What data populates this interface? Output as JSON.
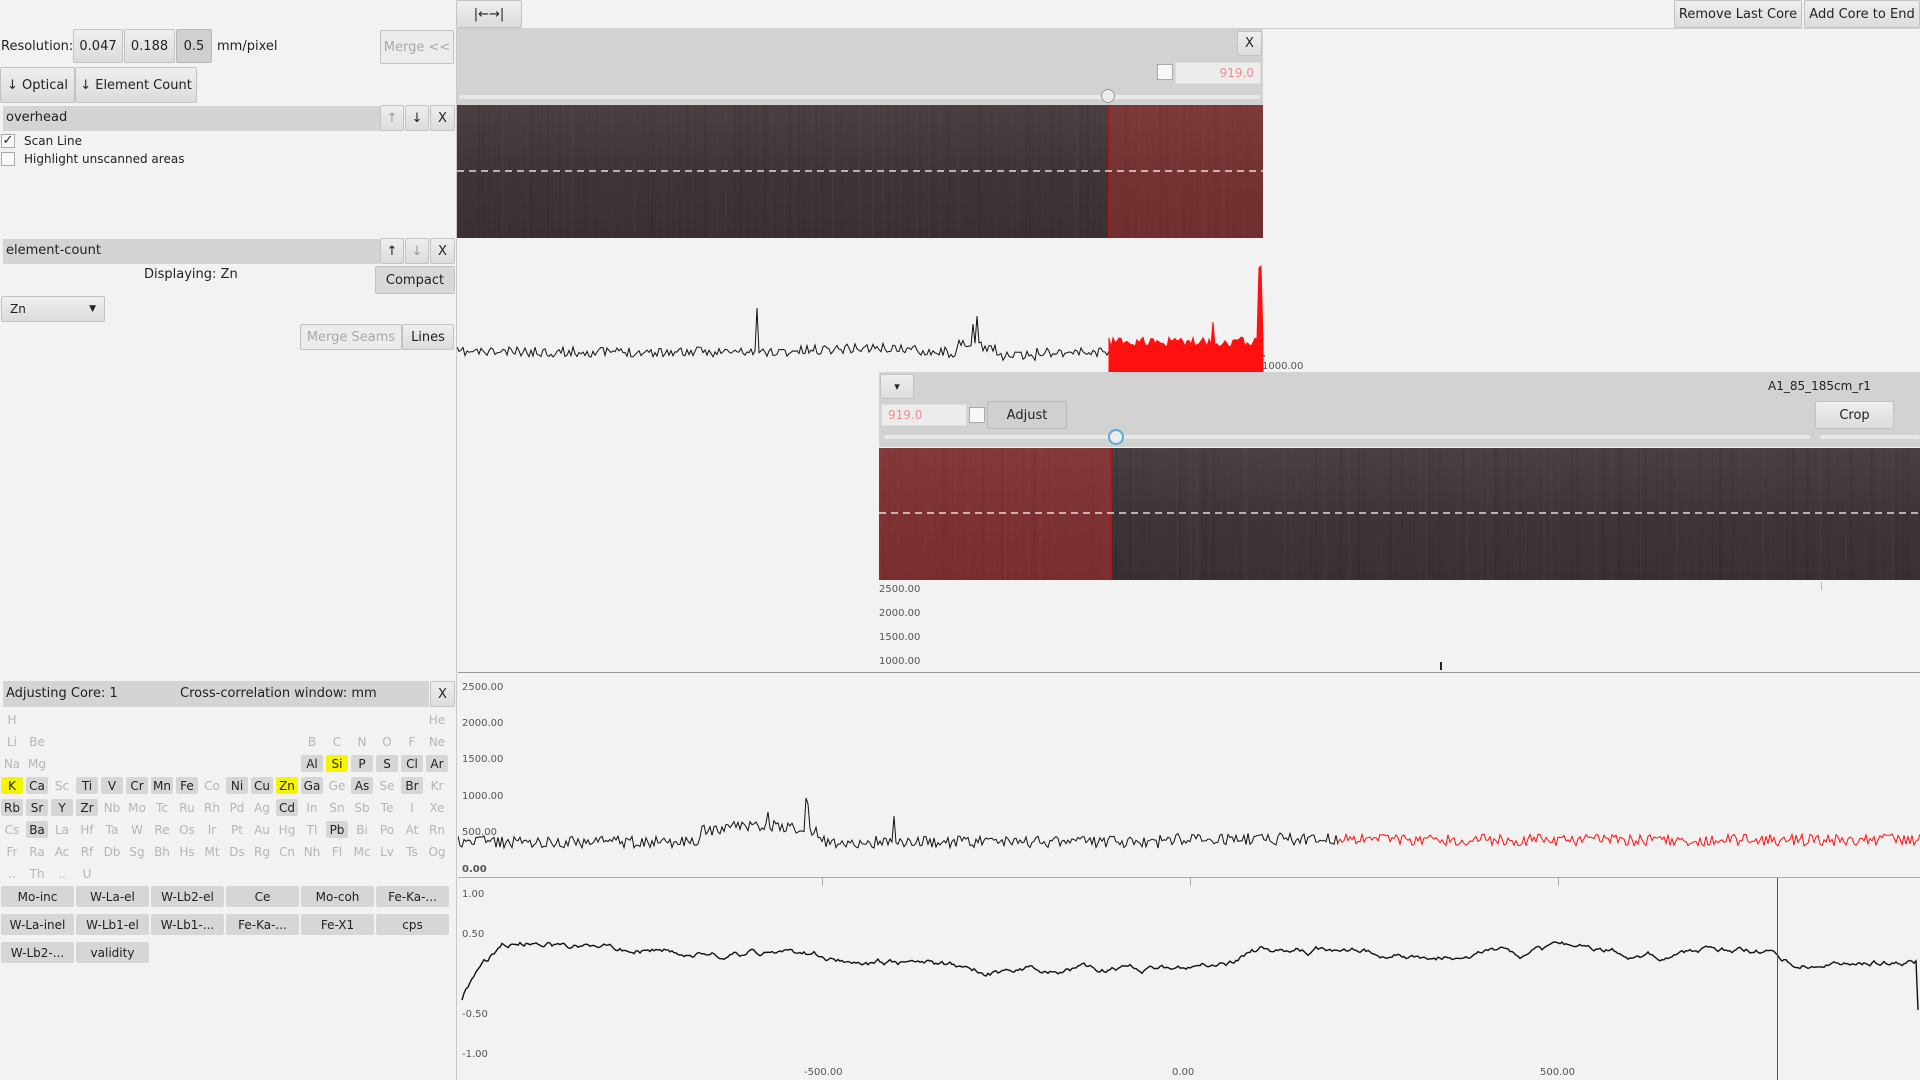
{
  "toolbar": {
    "resolution_label": "Resolution:",
    "res_options": [
      "0.047",
      "0.188",
      "0.5"
    ],
    "res_selected": "0.5",
    "unit_label": "mm/pixel",
    "merge_button": "Merge <<",
    "optical_button": "↓ Optical",
    "element_count_button": "↓ Element Count",
    "fit_button": "|←→|",
    "remove_last_core": "Remove Last Core",
    "add_core_to_end": "Add Core to End"
  },
  "overhead_panel": {
    "title": "overhead",
    "up": "↑",
    "down": "↓",
    "close": "X",
    "scan_line_label": "Scan Line",
    "scan_line_checked": true,
    "highlight_label": "Highlight unscanned areas",
    "highlight_checked": false
  },
  "element_panel": {
    "title": "element-count",
    "up": "↑",
    "down": "↓",
    "close": "X",
    "displaying": "Displaying: Zn",
    "compact_button": "Compact",
    "element_select": "Zn",
    "merge_seams_button": "Merge Seams",
    "lines_button": "Lines"
  },
  "adjust_panel": {
    "adjusting_label": "Adjusting Core: 1",
    "window_label": "Cross-correlation window: mm",
    "close": "X"
  },
  "periodic_table": [
    {
      "s": "H",
      "r": 0,
      "c": 0,
      "st": "off"
    },
    {
      "s": "He",
      "r": 0,
      "c": 17,
      "st": "off"
    },
    {
      "s": "Li",
      "r": 1,
      "c": 0,
      "st": "off"
    },
    {
      "s": "Be",
      "r": 1,
      "c": 1,
      "st": "off"
    },
    {
      "s": "B",
      "r": 1,
      "c": 12,
      "st": "off"
    },
    {
      "s": "C",
      "r": 1,
      "c": 13,
      "st": "off"
    },
    {
      "s": "N",
      "r": 1,
      "c": 14,
      "st": "off"
    },
    {
      "s": "O",
      "r": 1,
      "c": 15,
      "st": "off"
    },
    {
      "s": "F",
      "r": 1,
      "c": 16,
      "st": "off"
    },
    {
      "s": "Ne",
      "r": 1,
      "c": 17,
      "st": "off"
    },
    {
      "s": "Na",
      "r": 2,
      "c": 0,
      "st": "off"
    },
    {
      "s": "Mg",
      "r": 2,
      "c": 1,
      "st": "off"
    },
    {
      "s": "Al",
      "r": 2,
      "c": 12,
      "st": "on"
    },
    {
      "s": "Si",
      "r": 2,
      "c": 13,
      "st": "hi"
    },
    {
      "s": "P",
      "r": 2,
      "c": 14,
      "st": "on"
    },
    {
      "s": "S",
      "r": 2,
      "c": 15,
      "st": "on"
    },
    {
      "s": "Cl",
      "r": 2,
      "c": 16,
      "st": "on"
    },
    {
      "s": "Ar",
      "r": 2,
      "c": 17,
      "st": "on"
    },
    {
      "s": "K",
      "r": 3,
      "c": 0,
      "st": "hi"
    },
    {
      "s": "Ca",
      "r": 3,
      "c": 1,
      "st": "on"
    },
    {
      "s": "Sc",
      "r": 3,
      "c": 2,
      "st": "off"
    },
    {
      "s": "Ti",
      "r": 3,
      "c": 3,
      "st": "on"
    },
    {
      "s": "V",
      "r": 3,
      "c": 4,
      "st": "on"
    },
    {
      "s": "Cr",
      "r": 3,
      "c": 5,
      "st": "on"
    },
    {
      "s": "Mn",
      "r": 3,
      "c": 6,
      "st": "on"
    },
    {
      "s": "Fe",
      "r": 3,
      "c": 7,
      "st": "on"
    },
    {
      "s": "Co",
      "r": 3,
      "c": 8,
      "st": "off"
    },
    {
      "s": "Ni",
      "r": 3,
      "c": 9,
      "st": "on"
    },
    {
      "s": "Cu",
      "r": 3,
      "c": 10,
      "st": "on"
    },
    {
      "s": "Zn",
      "r": 3,
      "c": 11,
      "st": "hi"
    },
    {
      "s": "Ga",
      "r": 3,
      "c": 12,
      "st": "on"
    },
    {
      "s": "Ge",
      "r": 3,
      "c": 13,
      "st": "off"
    },
    {
      "s": "As",
      "r": 3,
      "c": 14,
      "st": "on"
    },
    {
      "s": "Se",
      "r": 3,
      "c": 15,
      "st": "off"
    },
    {
      "s": "Br",
      "r": 3,
      "c": 16,
      "st": "on"
    },
    {
      "s": "Kr",
      "r": 3,
      "c": 17,
      "st": "off"
    },
    {
      "s": "Rb",
      "r": 4,
      "c": 0,
      "st": "on"
    },
    {
      "s": "Sr",
      "r": 4,
      "c": 1,
      "st": "on"
    },
    {
      "s": "Y",
      "r": 4,
      "c": 2,
      "st": "on"
    },
    {
      "s": "Zr",
      "r": 4,
      "c": 3,
      "st": "on"
    },
    {
      "s": "Nb",
      "r": 4,
      "c": 4,
      "st": "off"
    },
    {
      "s": "Mo",
      "r": 4,
      "c": 5,
      "st": "off"
    },
    {
      "s": "Tc",
      "r": 4,
      "c": 6,
      "st": "off"
    },
    {
      "s": "Ru",
      "r": 4,
      "c": 7,
      "st": "off"
    },
    {
      "s": "Rh",
      "r": 4,
      "c": 8,
      "st": "off"
    },
    {
      "s": "Pd",
      "r": 4,
      "c": 9,
      "st": "off"
    },
    {
      "s": "Ag",
      "r": 4,
      "c": 10,
      "st": "off"
    },
    {
      "s": "Cd",
      "r": 4,
      "c": 11,
      "st": "on"
    },
    {
      "s": "In",
      "r": 4,
      "c": 12,
      "st": "off"
    },
    {
      "s": "Sn",
      "r": 4,
      "c": 13,
      "st": "off"
    },
    {
      "s": "Sb",
      "r": 4,
      "c": 14,
      "st": "off"
    },
    {
      "s": "Te",
      "r": 4,
      "c": 15,
      "st": "off"
    },
    {
      "s": "I",
      "r": 4,
      "c": 16,
      "st": "off"
    },
    {
      "s": "Xe",
      "r": 4,
      "c": 17,
      "st": "off"
    },
    {
      "s": "Cs",
      "r": 5,
      "c": 0,
      "st": "off"
    },
    {
      "s": "Ba",
      "r": 5,
      "c": 1,
      "st": "on"
    },
    {
      "s": "La",
      "r": 5,
      "c": 2,
      "st": "off"
    },
    {
      "s": "Hf",
      "r": 5,
      "c": 3,
      "st": "off"
    },
    {
      "s": "Ta",
      "r": 5,
      "c": 4,
      "st": "off"
    },
    {
      "s": "W",
      "r": 5,
      "c": 5,
      "st": "off"
    },
    {
      "s": "Re",
      "r": 5,
      "c": 6,
      "st": "off"
    },
    {
      "s": "Os",
      "r": 5,
      "c": 7,
      "st": "off"
    },
    {
      "s": "Ir",
      "r": 5,
      "c": 8,
      "st": "off"
    },
    {
      "s": "Pt",
      "r": 5,
      "c": 9,
      "st": "off"
    },
    {
      "s": "Au",
      "r": 5,
      "c": 10,
      "st": "off"
    },
    {
      "s": "Hg",
      "r": 5,
      "c": 11,
      "st": "off"
    },
    {
      "s": "Tl",
      "r": 5,
      "c": 12,
      "st": "off"
    },
    {
      "s": "Pb",
      "r": 5,
      "c": 13,
      "st": "on"
    },
    {
      "s": "Bi",
      "r": 5,
      "c": 14,
      "st": "off"
    },
    {
      "s": "Po",
      "r": 5,
      "c": 15,
      "st": "off"
    },
    {
      "s": "At",
      "r": 5,
      "c": 16,
      "st": "off"
    },
    {
      "s": "Rn",
      "r": 5,
      "c": 17,
      "st": "off"
    },
    {
      "s": "Fr",
      "r": 6,
      "c": 0,
      "st": "off"
    },
    {
      "s": "Ra",
      "r": 6,
      "c": 1,
      "st": "off"
    },
    {
      "s": "Ac",
      "r": 6,
      "c": 2,
      "st": "off"
    },
    {
      "s": "Rf",
      "r": 6,
      "c": 3,
      "st": "off"
    },
    {
      "s": "Db",
      "r": 6,
      "c": 4,
      "st": "off"
    },
    {
      "s": "Sg",
      "r": 6,
      "c": 5,
      "st": "off"
    },
    {
      "s": "Bh",
      "r": 6,
      "c": 6,
      "st": "off"
    },
    {
      "s": "Hs",
      "r": 6,
      "c": 7,
      "st": "off"
    },
    {
      "s": "Mt",
      "r": 6,
      "c": 8,
      "st": "off"
    },
    {
      "s": "Ds",
      "r": 6,
      "c": 9,
      "st": "off"
    },
    {
      "s": "Rg",
      "r": 6,
      "c": 10,
      "st": "off"
    },
    {
      "s": "Cn",
      "r": 6,
      "c": 11,
      "st": "off"
    },
    {
      "s": "Nh",
      "r": 6,
      "c": 12,
      "st": "off"
    },
    {
      "s": "Fl",
      "r": 6,
      "c": 13,
      "st": "off"
    },
    {
      "s": "Mc",
      "r": 6,
      "c": 14,
      "st": "off"
    },
    {
      "s": "Lv",
      "r": 6,
      "c": 15,
      "st": "off"
    },
    {
      "s": "Ts",
      "r": 6,
      "c": 16,
      "st": "off"
    },
    {
      "s": "Og",
      "r": 6,
      "c": 17,
      "st": "off"
    },
    {
      "s": "..",
      "r": 7,
      "c": 0,
      "st": "off"
    },
    {
      "s": "Th",
      "r": 7,
      "c": 1,
      "st": "off"
    },
    {
      "s": "..",
      "r": 7,
      "c": 2,
      "st": "off"
    },
    {
      "s": "U",
      "r": 7,
      "c": 3,
      "st": "off"
    }
  ],
  "extra_channels": [
    "Mo-inc",
    "W-La-el",
    "W-Lb2-el",
    "Ce",
    "Mo-coh",
    "Fe-Ka-...",
    "W-La-inel",
    "W-Lb1-el",
    "W-Lb1-...",
    "Fe-Ka-...",
    "Fe-X1",
    "cps",
    "W-Lb2-...",
    "validity"
  ],
  "core1": {
    "close": "X",
    "depth_value": "919.0",
    "slider_fraction": 0.81,
    "axis_end_label": "1000.00"
  },
  "core2": {
    "dropdown": "▾",
    "name": "A1_85_185cm_r1",
    "depth_value": "919.0",
    "adjust_button": "Adjust",
    "crop_button": "Crop",
    "slider_fraction": 0.25,
    "y_ticks": [
      "2500.00",
      "2000.00",
      "1500.00",
      "1000.00"
    ]
  },
  "merged_plot": {
    "y_ticks": [
      "2500.00",
      "2000.00",
      "1500.00",
      "1000.00",
      "500.00",
      "0.00"
    ]
  },
  "xcorr_plot": {
    "y_ticks": [
      "1.00",
      "0.50",
      "-0.50",
      "-1.00"
    ],
    "x_ticks": [
      "-500.00",
      "0.00",
      "500.00"
    ]
  },
  "colors": {
    "highlight": "#f5f500",
    "overlap": "#ff0000",
    "core_dark": "#3e3536"
  }
}
